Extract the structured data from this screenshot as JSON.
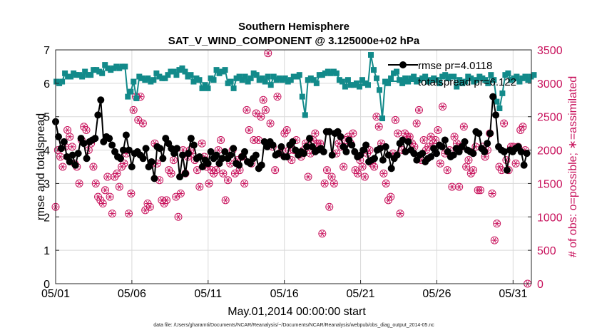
{
  "chart_data": {
    "type": "line",
    "title": "Southern Hemisphere",
    "subtitle": "SAT_V_WIND_COMPONENT @ 3.125000e+02 hPa",
    "xlabel": "May.01,2014 00:00:00 start",
    "ylabel_left": "rmse and totalspread",
    "ylabel_right": "# of obs: o=possible; ∗=assimilated",
    "footer": "data file: /Users/gharamti/Documents/NCAR/Reanalysis/~/Documents/NCAR/Reanalysis/webpub/obs_diag_output_2014-05.nc",
    "x_ticks": [
      "05/01",
      "05/06",
      "05/11",
      "05/16",
      "05/21",
      "05/26",
      "05/31"
    ],
    "x_tick_days": [
      0,
      5,
      10,
      15,
      20,
      25,
      30
    ],
    "xlim": [
      0,
      31.2
    ],
    "ylim_left": [
      0,
      7
    ],
    "yticks_left": [
      "0",
      "1",
      "2",
      "3",
      "4",
      "5",
      "6",
      "7"
    ],
    "ylim_right": [
      0,
      3500
    ],
    "yticks_right": [
      "0",
      "500",
      "1000",
      "1500",
      "2000",
      "2500",
      "3000",
      "3500"
    ],
    "colors": {
      "rmse": "#000000",
      "totalspread": "#128a8a",
      "obs": "#c8125c",
      "grid": "#d9d9d9"
    },
    "legend": [
      "rmse pr=4.0118",
      "totalspread pr=6.122"
    ],
    "series": [
      {
        "name": "rmse",
        "axis": "left",
        "values": [
          4.85,
          4.4,
          4.05,
          4.25,
          3.8,
          3.65,
          3.85,
          3.55,
          3.9,
          4.35,
          4.2,
          3.75,
          4.25,
          4.3,
          4.35,
          5.05,
          5.5,
          4.25,
          4.4,
          4.35,
          4.15,
          3.95,
          3.8,
          3.75,
          4.0,
          4.45,
          4.0,
          3.5,
          3.9,
          3.95,
          3.85,
          3.75,
          4.05,
          3.5,
          3.65,
          3.15,
          4.1,
          4.05,
          3.75,
          4.35,
          4.2,
          4.05,
          3.9,
          4.05,
          3.2,
          3.85,
          3.3,
          3.9,
          4.35,
          4.15,
          3.75,
          3.8,
          3.5,
          3.7,
          3.6,
          3.95,
          3.75,
          3.85,
          3.6,
          3.75,
          3.95,
          3.75,
          3.85,
          4.05,
          3.6,
          3.55,
          3.8,
          3.95,
          3.65,
          3.6,
          3.75,
          3.85,
          3.45,
          3.55,
          4.25,
          4.1,
          4.25,
          4.15,
          3.85,
          3.9,
          4.1,
          3.8,
          3.8,
          4.15,
          4.25,
          4.0,
          3.85,
          3.95,
          3.9,
          4.1,
          4.35,
          4.1,
          3.95,
          4.0,
          4.05,
          3.95,
          4.55,
          4.55,
          3.85,
          4.5,
          4.55,
          4.4,
          4.1,
          3.95,
          4.3,
          4.15,
          3.95,
          3.8,
          3.85,
          4.0,
          4.15,
          3.65,
          3.7,
          3.75,
          4.0,
          4.05,
          3.7,
          4.1,
          3.85,
          3.45,
          3.75,
          3.85,
          4.2,
          4.3,
          3.95,
          4.25,
          4.0,
          3.9,
          3.7,
          3.85,
          3.9,
          3.65,
          3.75,
          3.8,
          4.05,
          3.9,
          4.15,
          4.1,
          4.3,
          3.95,
          3.8,
          3.85,
          4.05,
          3.95,
          4.1,
          4.25,
          4.0,
          3.95,
          3.9,
          4.55,
          4.5,
          4.05,
          3.95,
          4.2,
          4.5,
          5.6,
          5.05,
          4.1,
          4.0,
          3.95,
          3.4,
          4.0,
          3.95,
          4.05,
          4.1,
          3.95,
          3.55,
          3.9
        ]
      },
      {
        "name": "totalspread",
        "axis": "left",
        "values": [
          6.05,
          6.0,
          6.05,
          6.3,
          6.2,
          6.2,
          6.3,
          6.25,
          6.25,
          6.2,
          6.35,
          6.25,
          6.25,
          6.4,
          6.4,
          6.35,
          6.3,
          6.55,
          6.45,
          6.4,
          6.45,
          6.5,
          6.45,
          6.5,
          6.5,
          5.6,
          5.75,
          6.05,
          5.55,
          6.2,
          6.15,
          6.1,
          6.15,
          6.05,
          6.1,
          6.3,
          6.2,
          6.15,
          6.15,
          6.25,
          6.35,
          6.35,
          6.25,
          6.4,
          6.45,
          6.35,
          6.2,
          6.25,
          6.05,
          6.15,
          6.1,
          5.85,
          5.95,
          5.85,
          6.15,
          6.1,
          6.4,
          6.3,
          6.35,
          6.4,
          6.0,
          6.05,
          5.85,
          6.15,
          6.2,
          6.1,
          6.2,
          6.05,
          6.15,
          6.3,
          6.25,
          6.1,
          6.15,
          6.05,
          6.2,
          5.95,
          6.2,
          6.1,
          6.15,
          6.1,
          6.15,
          6.05,
          6.1,
          6.2,
          6.2,
          6.25,
          5.6,
          5.05,
          6.1,
          6.15,
          6.1,
          6.0,
          6.25,
          6.25,
          6.3,
          6.35,
          6.3,
          6.35,
          6.3,
          6.1,
          6.05,
          5.9,
          6.1,
          5.95,
          5.95,
          6.0,
          5.9,
          6.1,
          6.0,
          5.95,
          6.85,
          6.4,
          6.15,
          5.8,
          4.95,
          6.05,
          6.0,
          6.15,
          6.3,
          6.35,
          6.1,
          6.0,
          6.15,
          6.05,
          6.15,
          6.2,
          6.05,
          6.1,
          6.15,
          6.2,
          6.05,
          6.1,
          6.15,
          6.1,
          6.0,
          6.2,
          6.25,
          6.15,
          6.2,
          6.2,
          5.9,
          6.1,
          6.0,
          6.05,
          6.2,
          6.15,
          6.05,
          6.1,
          6.2,
          6.15,
          6.1,
          6.0,
          6.25,
          6.1,
          5.45,
          5.25,
          5.7,
          6.25,
          6.3,
          6.1,
          6.15,
          6.2,
          6.05,
          6.15,
          6.2,
          6.1,
          6.2,
          6.25
        ]
      },
      {
        "name": "obs_assimilated",
        "axis": "right",
        "values": [
          1150,
          2000,
          1900,
          1750,
          2050,
          2300,
          2200,
          2050,
          1800,
          1750,
          1500,
          2150,
          2350,
          2300,
          2000,
          2100,
          1750,
          1500,
          1300,
          1250,
          1200,
          1400,
          1600,
          1300,
          1050,
          1600,
          1650,
          1450,
          1750,
          1800,
          1950,
          1050,
          1350,
          2600,
          2800,
          2450,
          2800,
          2400,
          1100,
          1200,
          1150,
          1800,
          2100,
          1800,
          1550,
          1250,
          1200,
          1250,
          1700,
          1650,
          1850,
          1300,
          1000,
          1350,
          2000,
          1650,
          1900,
          2000,
          1950,
          1850,
          1700,
          1450,
          2100,
          1900,
          1750,
          1500,
          1700,
          1650,
          1700,
          2000,
          2150,
          1650,
          1250,
          1550,
          1800,
          2000,
          1650,
          1850,
          1700,
          1900,
          1500,
          2600,
          2300,
          1800,
          2150,
          2550,
          2150,
          2500,
          2750,
          2600,
          3450,
          2400,
          2050,
          1700,
          2800,
          1950,
          2000,
          2250,
          2300,
          2000,
          1850,
          2000,
          2150,
          1950,
          1900,
          2000,
          2100,
          1600,
          1950,
          2150,
          2250,
          2100,
          2100,
          750,
          1500,
          1700,
          1150,
          1600,
          1500,
          1950,
          2100,
          2050,
          1750,
          2150,
          2200,
          2100,
          2250,
          1700,
          1650,
          1850,
          1750,
          1600,
          1950,
          2000,
          1800,
          1750,
          2500,
          2350,
          2100,
          1650,
          1500,
          1250,
          1300,
          1950,
          2450,
          2250,
          1050,
          2000,
          2250,
          2200,
          2200,
          2100,
          2050,
          2400,
          2600,
          1850,
          2150,
          2000,
          2050,
          2200,
          2100,
          2150,
          2300,
          1800,
          2650,
          1950,
          1700,
          2000,
          1450,
          2200,
          2100,
          1450,
          2050,
          2350,
          1750,
          1850,
          1650,
          1700,
          2050,
          1400,
          1400,
          2050,
          1900,
          2000,
          2250,
          1350,
          650,
          900,
          1750,
          1700,
          2400,
          1850,
          1700,
          2050,
          2050,
          1800,
          2050,
          2300,
          2350,
          2000,
          0
        ]
      }
    ]
  }
}
